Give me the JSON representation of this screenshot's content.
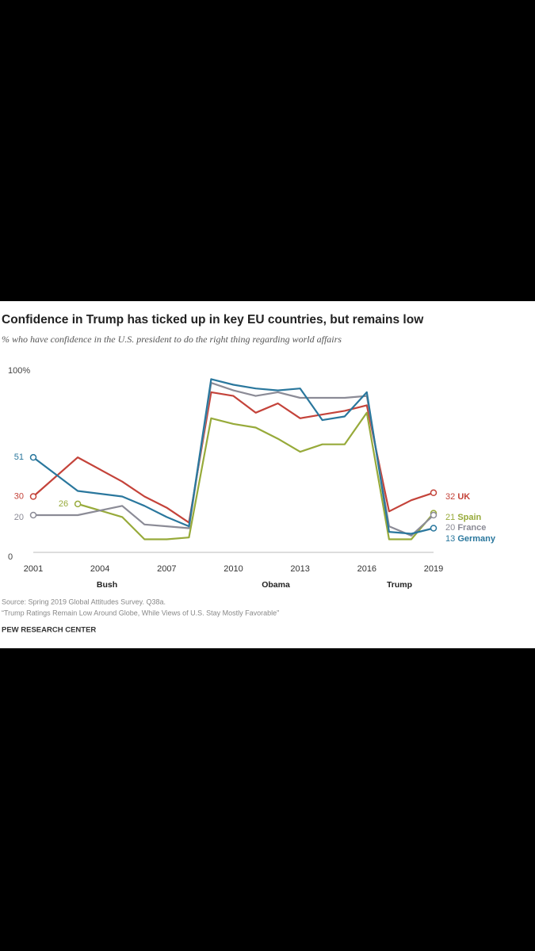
{
  "chart_data": {
    "type": "line",
    "title": "Confidence in Trump has ticked up in key EU countries, but remains low",
    "subtitle": "% who have confidence in the U.S. president to do the right thing regarding world affairs",
    "x": [
      2001,
      2003,
      2005,
      2006,
      2007,
      2008,
      2009,
      2010,
      2011,
      2012,
      2013,
      2014,
      2015,
      2016,
      2017,
      2018,
      2019
    ],
    "series": [
      {
        "name": "UK",
        "color": "#c4433a",
        "values": [
          30,
          51,
          38,
          30,
          24,
          16,
          86,
          84,
          75,
          80,
          72,
          74,
          76,
          79,
          22,
          28,
          32
        ]
      },
      {
        "name": "Spain",
        "color": "#97aa3a",
        "values": [
          null,
          26,
          19,
          7,
          7,
          8,
          72,
          69,
          67,
          61,
          54,
          58,
          58,
          75,
          7,
          7,
          21
        ]
      },
      {
        "name": "France",
        "color": "#8b8b96",
        "values": [
          20,
          20,
          25,
          15,
          14,
          13,
          91,
          87,
          84,
          86,
          83,
          83,
          83,
          84,
          14,
          9,
          20
        ]
      },
      {
        "name": "Germany",
        "color": "#2a779d",
        "values": [
          51,
          33,
          30,
          25,
          19,
          14,
          93,
          90,
          88,
          87,
          88,
          71,
          73,
          86,
          11,
          10,
          13
        ]
      }
    ],
    "xlim": [
      2001,
      2019
    ],
    "xticks": [
      2001,
      2004,
      2007,
      2010,
      2013,
      2016,
      2019
    ],
    "ylim": [
      0,
      100
    ],
    "yticks": [
      0,
      {
        "value": 100,
        "label": "100%"
      }
    ],
    "eras": [
      "Bush",
      "Obama",
      "Trump"
    ],
    "source": "Source: Spring 2019 Global Attitudes Survey. Q38a.",
    "note": "“Trump Ratings Remain Low Around Globe, While Views of U.S. Stay Mostly Favorable”",
    "credit": "PEW RESEARCH CENTER"
  }
}
